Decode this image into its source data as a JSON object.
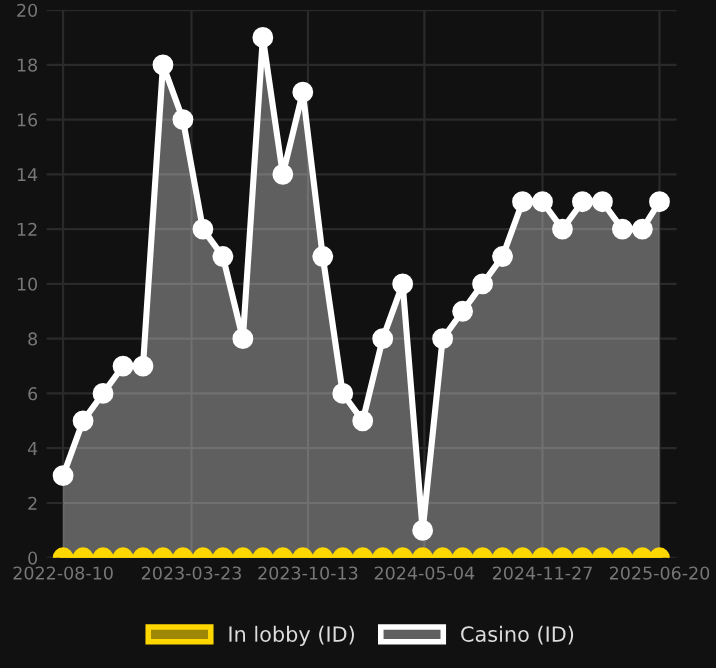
{
  "chart_data": {
    "type": "line",
    "x": [
      "2022-08-10",
      "2022-09-14",
      "2022-10-19",
      "2022-11-23",
      "2022-12-28",
      "2023-02-01",
      "2023-03-08",
      "2023-04-12",
      "2023-05-17",
      "2023-06-21",
      "2023-07-26",
      "2023-08-30",
      "2023-10-04",
      "2023-11-08",
      "2023-12-13",
      "2024-01-17",
      "2024-02-21",
      "2024-03-27",
      "2024-05-01",
      "2024-06-05",
      "2024-07-10",
      "2024-08-14",
      "2024-09-18",
      "2024-10-23",
      "2024-11-27",
      "2025-01-01",
      "2025-02-05",
      "2025-03-12",
      "2025-04-16",
      "2025-05-21",
      "2025-06-20"
    ],
    "series": [
      {
        "name": "In lobby (ID)",
        "color": "#ffd700",
        "values": [
          0,
          0,
          0,
          0,
          0,
          0,
          0,
          0,
          0,
          0,
          0,
          0,
          0,
          0,
          0,
          0,
          0,
          0,
          0,
          0,
          0,
          0,
          0,
          0,
          0,
          0,
          0,
          0,
          0,
          0,
          0
        ]
      },
      {
        "name": "Casino (ID)",
        "type": "area",
        "color": "#ffffff",
        "values": [
          3,
          5,
          6,
          7,
          7,
          18,
          16,
          12,
          11,
          8,
          19,
          14,
          17,
          11,
          6,
          5,
          8,
          10,
          1,
          8,
          9,
          10,
          11,
          13,
          13,
          12,
          13,
          13,
          12,
          12,
          13
        ]
      }
    ],
    "xlim": [
      "2022-07-12",
      "2025-07-20"
    ],
    "xticks": [
      "2022-08-10",
      "2023-03-23",
      "2023-10-13",
      "2024-05-04",
      "2024-11-27",
      "2025-06-20"
    ],
    "ylim": [
      0,
      20
    ],
    "yticks": [
      0,
      2,
      4,
      6,
      8,
      10,
      12,
      14,
      16,
      18,
      20
    ],
    "grid": true,
    "legend": "bottom",
    "marker": "circle",
    "line_style": "solid"
  }
}
